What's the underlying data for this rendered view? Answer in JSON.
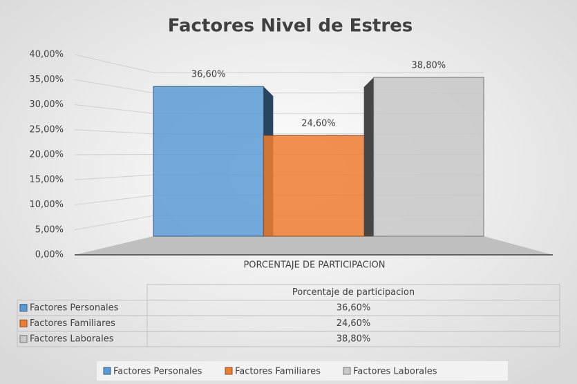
{
  "chart_data": {
    "type": "bar3d",
    "title": "Factores Nivel de Estres",
    "categories": [
      "PORCENTAJE DE PARTICIPACION"
    ],
    "series": [
      {
        "name": "Factores Personales",
        "color": "#5b9bd5",
        "values": [
          36.6
        ],
        "value_labels": [
          "36,60%"
        ]
      },
      {
        "name": "Factores Familiares",
        "color": "#ed7d31",
        "values": [
          24.6
        ],
        "value_labels": [
          "24,60%"
        ]
      },
      {
        "name": "Factores Laborales",
        "color": "#c8c8c8",
        "values": [
          38.8
        ],
        "value_labels": [
          "38,80%"
        ]
      }
    ],
    "ylim": [
      0,
      40
    ],
    "yticks": [
      {
        "value": 0,
        "label": "0,00%"
      },
      {
        "value": 5,
        "label": "5,00%"
      },
      {
        "value": 10,
        "label": "10,00%"
      },
      {
        "value": 15,
        "label": "15,00%"
      },
      {
        "value": 20,
        "label": "20,00%"
      },
      {
        "value": 25,
        "label": "25,00%"
      },
      {
        "value": 30,
        "label": "30,00%"
      },
      {
        "value": 35,
        "label": "35,00%"
      },
      {
        "value": 40,
        "label": "40,00%"
      }
    ],
    "grid": true,
    "legend": "bottom",
    "data_table": {
      "header": "Porcentaje de participacion"
    }
  }
}
